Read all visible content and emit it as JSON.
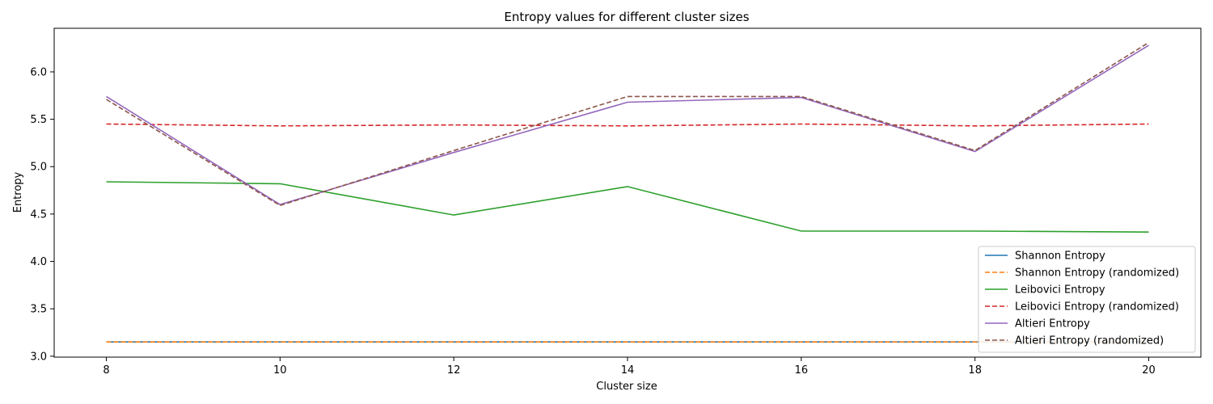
{
  "chart_data": {
    "type": "line",
    "title": "Entropy values for different cluster sizes",
    "xlabel": "Cluster size",
    "ylabel": "Entropy",
    "x": [
      8,
      10,
      12,
      14,
      16,
      18,
      20
    ],
    "xticks": [
      "8",
      "10",
      "12",
      "14",
      "16",
      "18",
      "20"
    ],
    "yticks": [
      "3.0",
      "3.5",
      "4.0",
      "4.5",
      "5.0",
      "5.5",
      "6.0"
    ],
    "xlim": [
      7.4,
      20.6
    ],
    "ylim": [
      2.99,
      6.46
    ],
    "grid": false,
    "legend_position": "lower-right",
    "series": [
      {
        "name": "Shannon Entropy",
        "color": "#1f77b4",
        "dashed": false,
        "values": [
          3.15,
          3.15,
          3.15,
          3.15,
          3.15,
          3.15,
          3.15
        ]
      },
      {
        "name": "Shannon Entropy (randomized)",
        "color": "#ff7f0e",
        "dashed": true,
        "values": [
          3.15,
          3.15,
          3.15,
          3.15,
          3.15,
          3.15,
          3.15
        ]
      },
      {
        "name": "Leibovici Entropy",
        "color": "#2ca02c",
        "dashed": false,
        "values": [
          4.84,
          4.82,
          4.49,
          4.79,
          4.32,
          4.32,
          4.31
        ]
      },
      {
        "name": "Leibovici Entropy (randomized)",
        "color": "#d62728",
        "dashed": true,
        "values": [
          5.45,
          5.43,
          5.44,
          5.43,
          5.45,
          5.43,
          5.45
        ]
      },
      {
        "name": "Altieri Entropy",
        "color": "#9467bd",
        "dashed": false,
        "values": [
          5.74,
          4.6,
          5.15,
          5.68,
          5.73,
          5.16,
          6.28
        ]
      },
      {
        "name": "Altieri Entropy (randomized)",
        "color": "#8c564b",
        "dashed": true,
        "values": [
          5.71,
          4.59,
          5.17,
          5.74,
          5.74,
          5.17,
          6.31
        ]
      }
    ]
  }
}
